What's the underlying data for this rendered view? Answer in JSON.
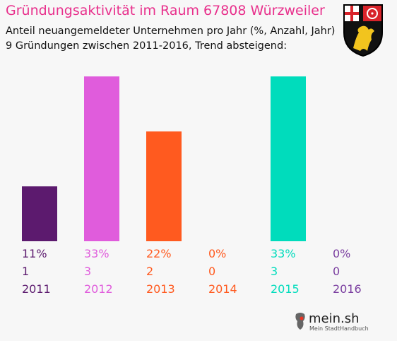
{
  "title": "Gründungsaktivität im Raum 67808 Würzweiler",
  "subtitle_line1": "Anteil neuangemeldeter Unternehmen pro Jahr (%, Anzahl, Jahr)",
  "subtitle_line2": "9 Gründungen zwischen 2011-2016, Trend absteigend:",
  "logo": {
    "name": "mein.sh",
    "tagline": "Mein StadtHandbuch"
  },
  "crest_icon": "coat-of-arms-rhineland-palatinate",
  "chart_data": {
    "type": "bar",
    "categories": [
      "2011",
      "2012",
      "2013",
      "2014",
      "2015",
      "2016"
    ],
    "percent_labels": [
      "11%",
      "33%",
      "22%",
      "0%",
      "33%",
      "0%"
    ],
    "percent_values": [
      11,
      33,
      22,
      0,
      33,
      0
    ],
    "counts": [
      1,
      3,
      2,
      0,
      3,
      0
    ],
    "colors": [
      "#5c1a6e",
      "#e05cdc",
      "#ff5a1f",
      "#ff5a1f",
      "#00dcbc",
      "#7b3fa0"
    ],
    "ylim": [
      0,
      33
    ],
    "grid": false,
    "legend": "none"
  }
}
